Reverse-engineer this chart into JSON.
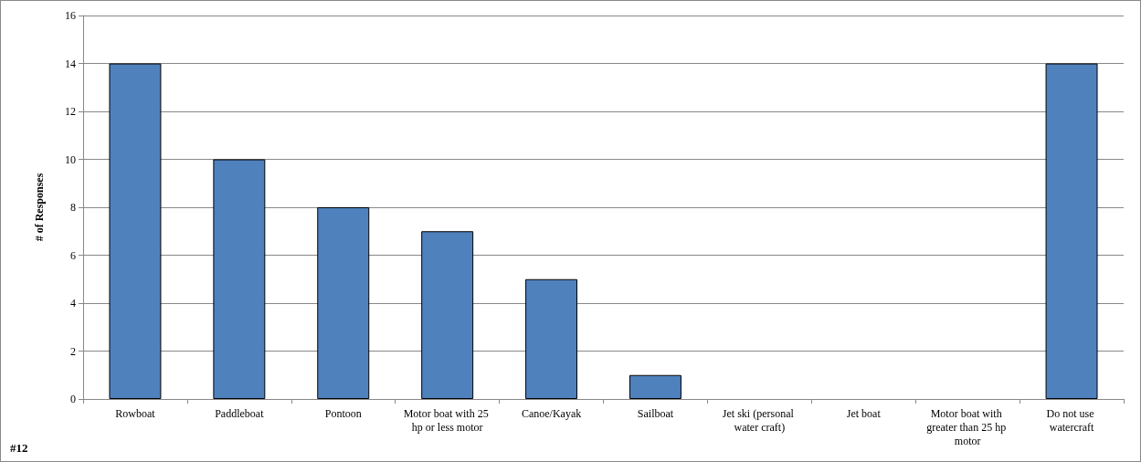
{
  "chart_data": {
    "type": "bar",
    "ylabel": "# of Responses",
    "categories": [
      "Rowboat",
      "Paddleboat",
      "Pontoon",
      "Motor boat with 25 hp or less motor",
      "Canoe/Kayak",
      "Sailboat",
      "Jet ski (personal water craft)",
      "Jet boat",
      "Motor boat with greater than 25 hp motor",
      "Do not use watercraft"
    ],
    "values": [
      14,
      10,
      8,
      7,
      5,
      1,
      0,
      0,
      0,
      14
    ],
    "color": "#4f81bd",
    "ylim": [
      0,
      16
    ],
    "yticks": [
      0,
      2,
      4,
      6,
      8,
      10,
      12,
      14,
      16
    ],
    "grid": "y",
    "annotations": [
      "#12"
    ]
  }
}
